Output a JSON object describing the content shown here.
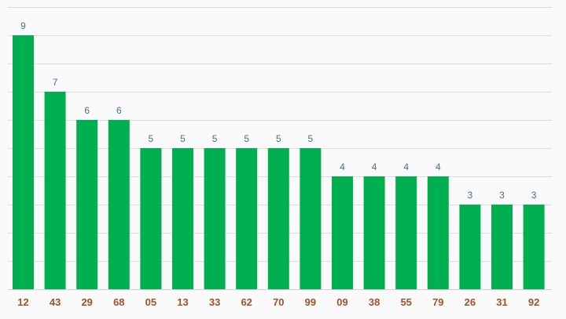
{
  "chart_data": {
    "type": "bar",
    "title": "",
    "xlabel": "",
    "ylabel": "",
    "categories": [
      "12",
      "43",
      "29",
      "68",
      "05",
      "13",
      "33",
      "62",
      "70",
      "99",
      "09",
      "38",
      "55",
      "79",
      "26",
      "31",
      "92"
    ],
    "values": [
      9,
      7,
      6,
      6,
      5,
      5,
      5,
      5,
      5,
      5,
      4,
      4,
      4,
      4,
      3,
      3,
      3
    ],
    "ylim": [
      0,
      10
    ],
    "grid": true,
    "grid_step": 1,
    "legend": "none",
    "y_tick_labels_shown": false
  },
  "colors": {
    "background": "#fafafa",
    "bar": "#00b050",
    "value_label": "#4a6d8c",
    "category_label": "#a0522d",
    "grid": "#dddddd"
  }
}
